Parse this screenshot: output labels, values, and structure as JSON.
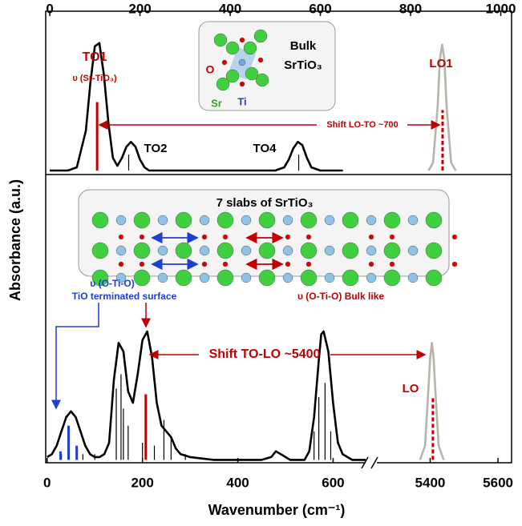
{
  "chart_data": [
    {
      "type": "line",
      "ylabel": "Absorbance (a.u.)",
      "xlim": [
        -9,
        1024
      ],
      "xticks": [
        0,
        200,
        400,
        600,
        800,
        1000
      ],
      "ylim": [
        -0.025,
        1
      ],
      "series": [
        {
          "kind": "curve",
          "color": "#000000",
          "x": [
            0,
            40,
            60,
            80,
            90,
            100,
            110,
            120,
            130,
            140,
            150,
            160,
            170,
            180,
            190,
            200,
            210,
            220,
            500,
            520,
            530,
            540,
            550,
            560,
            570,
            580,
            600,
            650
          ],
          "values": [
            0,
            0,
            0.02,
            0.25,
            0.55,
            0.78,
            0.8,
            0.6,
            0.3,
            0.08,
            0.03,
            0.08,
            0.15,
            0.18,
            0.15,
            0.07,
            0.02,
            0,
            0,
            0.02,
            0.07,
            0.14,
            0.18,
            0.16,
            0.08,
            0.02,
            0,
            0
          ]
        },
        {
          "kind": "curve",
          "color": "#b8b4aa",
          "x": [
            840,
            850,
            860,
            865,
            870,
            875,
            880,
            890,
            900
          ],
          "values": [
            0,
            0.05,
            0.4,
            0.7,
            0.79,
            0.7,
            0.4,
            0.05,
            0
          ]
        },
        {
          "kind": "sticks",
          "color": "#c00000",
          "x": [
            105
          ],
          "values": [
            0.43
          ]
        },
        {
          "kind": "sticks",
          "color": "#c00000",
          "dashed": true,
          "x": [
            871
          ],
          "values": [
            0.38
          ]
        },
        {
          "kind": "sticks",
          "color": "#000000",
          "x": [
            175,
            552
          ],
          "values": [
            0.1,
            0.1
          ]
        }
      ],
      "annotations": [
        "TO1",
        "υ (Sr-TiO₃)",
        "TO2",
        "TO4",
        "LO1",
        "Shift LO-TO ~700"
      ],
      "inset": [
        "Bulk",
        "SrTiO₃",
        "O",
        "Sr",
        "Ti"
      ]
    },
    {
      "type": "line",
      "xlabel": "Wavenumber (cm⁻¹)",
      "xlim": [
        [
          -3,
          680
        ],
        [
          5250,
          5640
        ]
      ],
      "xticks": [
        0,
        200,
        400,
        600,
        5400,
        5600
      ],
      "ylim": [
        -0.01,
        1
      ],
      "series": [
        {
          "kind": "curve",
          "color": "#000000",
          "x": [
            0,
            10,
            20,
            30,
            40,
            50,
            60,
            70,
            80,
            90,
            100,
            110,
            120,
            130,
            140,
            150,
            160,
            170,
            180,
            190,
            200,
            210,
            220,
            230,
            240,
            250,
            260,
            270,
            280,
            300,
            350,
            450,
            470,
            480,
            490,
            510,
            540,
            550,
            560,
            570,
            575,
            580,
            590,
            600,
            610,
            620,
            640,
            680
          ],
          "values": [
            0.01,
            0.02,
            0.05,
            0.1,
            0.15,
            0.17,
            0.15,
            0.1,
            0.05,
            0.02,
            0.01,
            0.01,
            0.02,
            0.06,
            0.28,
            0.41,
            0.38,
            0.24,
            0.2,
            0.3,
            0.42,
            0.45,
            0.36,
            0.2,
            0.12,
            0.1,
            0.08,
            0.04,
            0.02,
            0.01,
            0,
            0,
            0.01,
            0.03,
            0.02,
            0,
            0,
            0.03,
            0.15,
            0.35,
            0.44,
            0.45,
            0.38,
            0.2,
            0.06,
            0.02,
            0,
            0
          ]
        },
        {
          "kind": "curve",
          "color": "#b8b4aa",
          "x": [
            5370,
            5385,
            5395,
            5400,
            5405,
            5410,
            5415,
            5425,
            5440
          ],
          "values": [
            0,
            0.05,
            0.25,
            0.36,
            0.41,
            0.36,
            0.25,
            0.05,
            0
          ]
        },
        {
          "kind": "sticks",
          "color": "#000000",
          "x": [
            30,
            75,
            100,
            145,
            155,
            160,
            170,
            200,
            225,
            245,
            260,
            290,
            560,
            570,
            583,
            595
          ],
          "values": [
            0.02,
            0.02,
            0.02,
            0.25,
            0.3,
            0.18,
            0.12,
            0.06,
            0.05,
            0.14,
            0.08,
            0.02,
            0.1,
            0.22,
            0.27,
            0.1
          ]
        },
        {
          "kind": "sticks",
          "color": "#1f3fd0",
          "x": [
            28,
            45,
            62
          ],
          "values": [
            0.03,
            0.12,
            0.05
          ]
        },
        {
          "kind": "sticks",
          "color": "#c00000",
          "x": [
            207
          ],
          "values": [
            0.23
          ]
        },
        {
          "kind": "sticks",
          "color": "#c00000",
          "dashed": true,
          "x": [
            5408
          ],
          "values": [
            0.22
          ]
        }
      ],
      "annotations": [
        "υ (O-Ti-O)",
        "TiO terminated surface",
        "υ (O-Ti-O) Bulk like",
        "Shift TO-LO ~5400",
        "LO"
      ],
      "inset": [
        "7 slabs of SrTiO₃"
      ]
    }
  ]
}
